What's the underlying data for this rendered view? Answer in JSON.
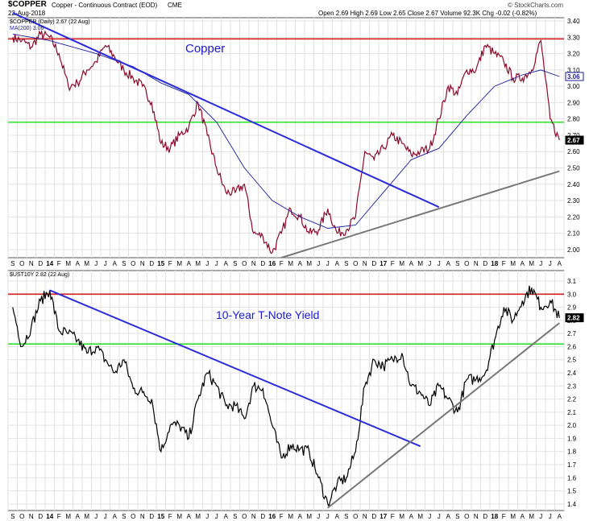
{
  "header": {
    "symbol": "$COPPER",
    "name": "Copper - Continuous Contract (EOD)",
    "exchange": "CME",
    "date": "22-Aug-2018",
    "quote": "Open 2.69  High 2.69  Low 2.65  Close 2.67  Volume 92.3K  Chg -0.02 (-0.82%)",
    "watermark": "© StockCharts.com"
  },
  "colors": {
    "price": "#8b0a2a",
    "ma": "#1c1c9c",
    "trend_blue": "#2b2bd9",
    "trend_gray": "#777777",
    "resistance": "#d31c1c",
    "support": "#2ee02e",
    "yield_line": "#000000",
    "grid": "#e2e2e2"
  },
  "chart_data": [
    {
      "type": "line",
      "title": "Copper",
      "legend": [
        "$COPPER (Daily) 2.67 (22 Aug)",
        "MA(200) 3.06"
      ],
      "ylim": [
        1.95,
        3.42
      ],
      "y_ticks": [
        2.0,
        2.1,
        2.2,
        2.3,
        2.4,
        2.5,
        2.6,
        2.7,
        2.8,
        2.9,
        3.0,
        3.1,
        3.2,
        3.3,
        3.4
      ],
      "last_value_labels": [
        "3.06",
        "2.67"
      ],
      "series": [
        {
          "name": "$COPPER (Daily)",
          "x": [
            "2013-09",
            "2013-10",
            "2013-11",
            "2013-12",
            "2014-01",
            "2014-02",
            "2014-03",
            "2014-04",
            "2014-05",
            "2014-06",
            "2014-07",
            "2014-08",
            "2014-09",
            "2014-10",
            "2014-11",
            "2014-12",
            "2015-01",
            "2015-02",
            "2015-03",
            "2015-04",
            "2015-05",
            "2015-06",
            "2015-07",
            "2015-08",
            "2015-09",
            "2015-10",
            "2015-11",
            "2015-12",
            "2016-01",
            "2016-02",
            "2016-03",
            "2016-04",
            "2016-05",
            "2016-06",
            "2016-07",
            "2016-08",
            "2016-09",
            "2016-10",
            "2016-11",
            "2016-12",
            "2017-01",
            "2017-02",
            "2017-03",
            "2017-04",
            "2017-05",
            "2017-06",
            "2017-07",
            "2017-08",
            "2017-09",
            "2017-10",
            "2017-11",
            "2017-12",
            "2018-01",
            "2018-02",
            "2018-03",
            "2018-04",
            "2018-05",
            "2018-06",
            "2018-07",
            "2018-08"
          ],
          "values": [
            3.3,
            3.28,
            3.24,
            3.32,
            3.3,
            3.2,
            3.0,
            3.02,
            3.1,
            3.15,
            3.25,
            3.18,
            3.1,
            3.05,
            3.0,
            2.9,
            2.65,
            2.62,
            2.7,
            2.75,
            2.9,
            2.7,
            2.5,
            2.35,
            2.35,
            2.4,
            2.1,
            2.08,
            1.98,
            2.1,
            2.25,
            2.2,
            2.1,
            2.12,
            2.25,
            2.1,
            2.12,
            2.2,
            2.6,
            2.55,
            2.62,
            2.7,
            2.65,
            2.58,
            2.6,
            2.62,
            2.8,
            3.0,
            2.95,
            3.1,
            3.1,
            3.25,
            3.2,
            3.15,
            3.05,
            3.05,
            3.1,
            3.28,
            2.8,
            2.67
          ]
        },
        {
          "name": "MA(200)",
          "x": [
            "2013-09",
            "2014-01",
            "2014-06",
            "2014-10",
            "2015-01",
            "2015-04",
            "2015-07",
            "2015-10",
            "2016-01",
            "2016-04",
            "2016-07",
            "2016-10",
            "2017-01",
            "2017-04",
            "2017-07",
            "2017-10",
            "2018-01",
            "2018-04",
            "2018-06",
            "2018-08"
          ],
          "values": [
            3.32,
            3.28,
            3.2,
            3.12,
            3.02,
            2.95,
            2.78,
            2.5,
            2.3,
            2.2,
            2.13,
            2.15,
            2.35,
            2.55,
            2.62,
            2.82,
            3.0,
            3.07,
            3.1,
            3.06
          ]
        }
      ],
      "trendlines": [
        {
          "name": "downtrend",
          "from": [
            "2013-09",
            3.45
          ],
          "to": [
            "2017-07",
            2.26
          ]
        },
        {
          "name": "uptrend",
          "from": [
            "2016-02",
            1.95
          ],
          "to": [
            "2018-08",
            2.48
          ]
        }
      ],
      "horizontal_lines": [
        {
          "name": "resistance",
          "value": 3.29
        },
        {
          "name": "support",
          "value": 2.78
        }
      ]
    },
    {
      "type": "line",
      "title": "10-Year T-Note Yield",
      "legend": [
        "$UST10Y 2.82 (22 Aug)"
      ],
      "ylim": [
        1.35,
        3.18
      ],
      "y_ticks": [
        1.4,
        1.5,
        1.6,
        1.7,
        1.8,
        1.9,
        2.0,
        2.1,
        2.2,
        2.3,
        2.4,
        2.5,
        2.6,
        2.7,
        2.8,
        2.9,
        3.0,
        3.1
      ],
      "last_value_labels": [
        "2.82"
      ],
      "series": [
        {
          "name": "$UST10Y",
          "x": [
            "2013-09",
            "2013-10",
            "2013-11",
            "2013-12",
            "2014-01",
            "2014-02",
            "2014-03",
            "2014-04",
            "2014-05",
            "2014-06",
            "2014-07",
            "2014-08",
            "2014-09",
            "2014-10",
            "2014-11",
            "2014-12",
            "2015-01",
            "2015-02",
            "2015-03",
            "2015-04",
            "2015-05",
            "2015-06",
            "2015-07",
            "2015-08",
            "2015-09",
            "2015-10",
            "2015-11",
            "2015-12",
            "2016-01",
            "2016-02",
            "2016-03",
            "2016-04",
            "2016-05",
            "2016-06",
            "2016-07",
            "2016-08",
            "2016-09",
            "2016-10",
            "2016-11",
            "2016-12",
            "2017-01",
            "2017-02",
            "2017-03",
            "2017-04",
            "2017-05",
            "2017-06",
            "2017-07",
            "2017-08",
            "2017-09",
            "2017-10",
            "2017-11",
            "2017-12",
            "2018-01",
            "2018-02",
            "2018-03",
            "2018-04",
            "2018-05",
            "2018-06",
            "2018-07",
            "2018-08"
          ],
          "values": [
            2.9,
            2.6,
            2.75,
            2.95,
            3.03,
            2.72,
            2.7,
            2.65,
            2.55,
            2.6,
            2.5,
            2.4,
            2.5,
            2.28,
            2.25,
            2.2,
            1.8,
            2.0,
            2.0,
            1.9,
            2.2,
            2.4,
            2.3,
            2.15,
            2.15,
            2.05,
            2.3,
            2.28,
            2.0,
            1.75,
            1.85,
            1.82,
            1.8,
            1.6,
            1.4,
            1.55,
            1.6,
            1.8,
            2.3,
            2.5,
            2.45,
            2.5,
            2.55,
            2.3,
            2.25,
            2.15,
            2.3,
            2.2,
            2.1,
            2.35,
            2.35,
            2.4,
            2.65,
            2.9,
            2.8,
            2.95,
            3.05,
            2.9,
            2.95,
            2.82
          ]
        }
      ],
      "trendlines": [
        {
          "name": "downtrend",
          "from": [
            "2014-01",
            3.03
          ],
          "to": [
            "2017-05",
            1.84
          ]
        },
        {
          "name": "uptrend",
          "from": [
            "2016-07",
            1.37
          ],
          "to": [
            "2018-08",
            2.78
          ]
        }
      ],
      "horizontal_lines": [
        {
          "name": "resistance",
          "value": 3.0
        },
        {
          "name": "support",
          "value": 2.62
        }
      ]
    }
  ],
  "x_axis_labels": [
    "S",
    "O",
    "N",
    "D",
    "14",
    "F",
    "M",
    "A",
    "M",
    "J",
    "J",
    "A",
    "S",
    "O",
    "N",
    "D",
    "15",
    "F",
    "M",
    "A",
    "M",
    "J",
    "J",
    "A",
    "S",
    "O",
    "N",
    "D",
    "16",
    "F",
    "M",
    "A",
    "M",
    "J",
    "J",
    "A",
    "S",
    "O",
    "N",
    "D",
    "17",
    "F",
    "M",
    "A",
    "M",
    "J",
    "J",
    "A",
    "S",
    "O",
    "N",
    "D",
    "18",
    "F",
    "M",
    "A",
    "M",
    "J",
    "J",
    "A"
  ]
}
